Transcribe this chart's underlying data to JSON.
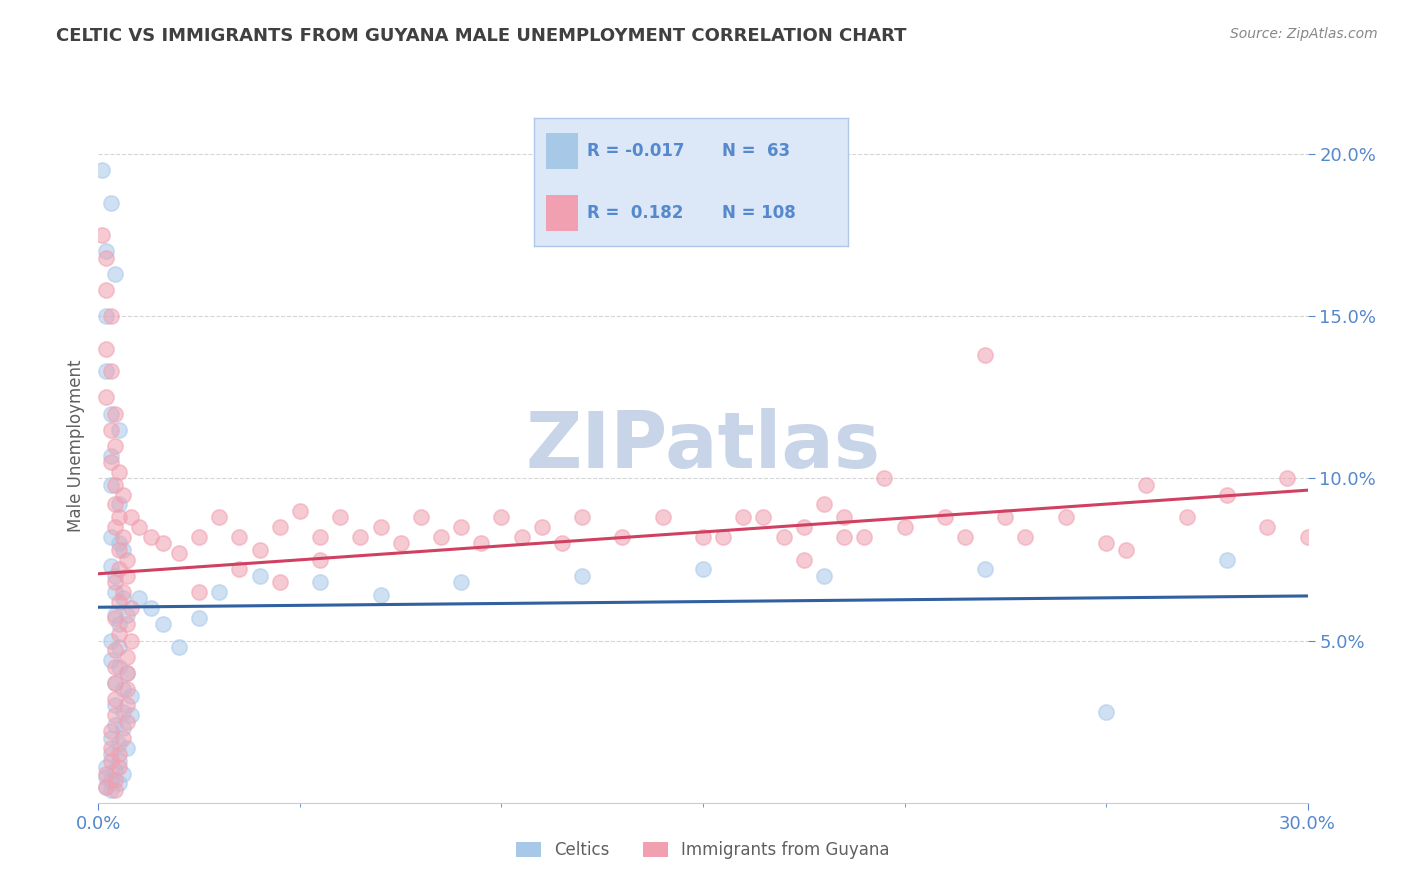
{
  "title": "CELTIC VS IMMIGRANTS FROM GUYANA MALE UNEMPLOYMENT CORRELATION CHART",
  "source": "Source: ZipAtlas.com",
  "ylabel": "Male Unemployment",
  "xlim": [
    0.0,
    0.3
  ],
  "ylim": [
    0.0,
    0.22
  ],
  "xticks_major": [
    0.0,
    0.3
  ],
  "xtick_labels_major": [
    "0.0%",
    "30.0%"
  ],
  "xticks_minor": [
    0.05,
    0.1,
    0.15,
    0.2,
    0.25
  ],
  "yticks": [
    0.05,
    0.1,
    0.15,
    0.2
  ],
  "ytick_labels": [
    "5.0%",
    "10.0%",
    "15.0%",
    "20.0%"
  ],
  "celtics_color": "#a8c8e8",
  "guyana_color": "#f0a0b0",
  "celtics_line_color": "#3060a0",
  "guyana_line_color": "#d04060",
  "legend_bg_color": "#dce8f8",
  "legend_border_color": "#b0c8e8",
  "R_celtics": -0.017,
  "N_celtics": 63,
  "R_guyana": 0.182,
  "N_guyana": 108,
  "title_color": "#404040",
  "tick_color": "#5588cc",
  "source_color": "#888888",
  "watermark": "ZIPatlas",
  "watermark_color": "#c8d4e8",
  "grid_color": "#cccccc",
  "celtics_points": [
    [
      0.001,
      0.195
    ],
    [
      0.003,
      0.185
    ],
    [
      0.002,
      0.17
    ],
    [
      0.004,
      0.163
    ],
    [
      0.002,
      0.15
    ],
    [
      0.002,
      0.133
    ],
    [
      0.003,
      0.12
    ],
    [
      0.005,
      0.115
    ],
    [
      0.003,
      0.107
    ],
    [
      0.003,
      0.098
    ],
    [
      0.005,
      0.092
    ],
    [
      0.003,
      0.082
    ],
    [
      0.005,
      0.08
    ],
    [
      0.006,
      0.078
    ],
    [
      0.003,
      0.073
    ],
    [
      0.004,
      0.07
    ],
    [
      0.004,
      0.065
    ],
    [
      0.006,
      0.063
    ],
    [
      0.004,
      0.058
    ],
    [
      0.005,
      0.055
    ],
    [
      0.003,
      0.05
    ],
    [
      0.005,
      0.048
    ],
    [
      0.003,
      0.044
    ],
    [
      0.005,
      0.042
    ],
    [
      0.007,
      0.04
    ],
    [
      0.004,
      0.037
    ],
    [
      0.006,
      0.035
    ],
    [
      0.008,
      0.033
    ],
    [
      0.004,
      0.03
    ],
    [
      0.006,
      0.028
    ],
    [
      0.008,
      0.027
    ],
    [
      0.004,
      0.024
    ],
    [
      0.006,
      0.023
    ],
    [
      0.003,
      0.02
    ],
    [
      0.005,
      0.018
    ],
    [
      0.007,
      0.017
    ],
    [
      0.003,
      0.015
    ],
    [
      0.005,
      0.013
    ],
    [
      0.002,
      0.011
    ],
    [
      0.004,
      0.01
    ],
    [
      0.006,
      0.009
    ],
    [
      0.002,
      0.008
    ],
    [
      0.003,
      0.007
    ],
    [
      0.005,
      0.006
    ],
    [
      0.002,
      0.005
    ],
    [
      0.003,
      0.004
    ],
    [
      0.007,
      0.058
    ],
    [
      0.01,
      0.063
    ],
    [
      0.013,
      0.06
    ],
    [
      0.016,
      0.055
    ],
    [
      0.02,
      0.048
    ],
    [
      0.025,
      0.057
    ],
    [
      0.03,
      0.065
    ],
    [
      0.04,
      0.07
    ],
    [
      0.055,
      0.068
    ],
    [
      0.07,
      0.064
    ],
    [
      0.09,
      0.068
    ],
    [
      0.12,
      0.07
    ],
    [
      0.15,
      0.072
    ],
    [
      0.18,
      0.07
    ],
    [
      0.22,
      0.072
    ],
    [
      0.25,
      0.028
    ],
    [
      0.28,
      0.075
    ]
  ],
  "guyana_points": [
    [
      0.001,
      0.175
    ],
    [
      0.002,
      0.168
    ],
    [
      0.002,
      0.158
    ],
    [
      0.003,
      0.15
    ],
    [
      0.002,
      0.14
    ],
    [
      0.003,
      0.133
    ],
    [
      0.002,
      0.125
    ],
    [
      0.004,
      0.12
    ],
    [
      0.003,
      0.115
    ],
    [
      0.004,
      0.11
    ],
    [
      0.003,
      0.105
    ],
    [
      0.005,
      0.102
    ],
    [
      0.004,
      0.098
    ],
    [
      0.006,
      0.095
    ],
    [
      0.004,
      0.092
    ],
    [
      0.005,
      0.088
    ],
    [
      0.004,
      0.085
    ],
    [
      0.006,
      0.082
    ],
    [
      0.005,
      0.078
    ],
    [
      0.007,
      0.075
    ],
    [
      0.005,
      0.072
    ],
    [
      0.007,
      0.07
    ],
    [
      0.004,
      0.068
    ],
    [
      0.006,
      0.065
    ],
    [
      0.005,
      0.062
    ],
    [
      0.008,
      0.06
    ],
    [
      0.004,
      0.057
    ],
    [
      0.007,
      0.055
    ],
    [
      0.005,
      0.052
    ],
    [
      0.008,
      0.05
    ],
    [
      0.004,
      0.047
    ],
    [
      0.007,
      0.045
    ],
    [
      0.004,
      0.042
    ],
    [
      0.007,
      0.04
    ],
    [
      0.004,
      0.037
    ],
    [
      0.007,
      0.035
    ],
    [
      0.004,
      0.032
    ],
    [
      0.007,
      0.03
    ],
    [
      0.004,
      0.027
    ],
    [
      0.007,
      0.025
    ],
    [
      0.003,
      0.022
    ],
    [
      0.006,
      0.02
    ],
    [
      0.003,
      0.017
    ],
    [
      0.005,
      0.015
    ],
    [
      0.003,
      0.013
    ],
    [
      0.005,
      0.011
    ],
    [
      0.002,
      0.009
    ],
    [
      0.004,
      0.007
    ],
    [
      0.002,
      0.005
    ],
    [
      0.004,
      0.004
    ],
    [
      0.008,
      0.088
    ],
    [
      0.01,
      0.085
    ],
    [
      0.013,
      0.082
    ],
    [
      0.016,
      0.08
    ],
    [
      0.02,
      0.077
    ],
    [
      0.025,
      0.082
    ],
    [
      0.03,
      0.088
    ],
    [
      0.035,
      0.082
    ],
    [
      0.04,
      0.078
    ],
    [
      0.045,
      0.085
    ],
    [
      0.05,
      0.09
    ],
    [
      0.055,
      0.082
    ],
    [
      0.06,
      0.088
    ],
    [
      0.065,
      0.082
    ],
    [
      0.07,
      0.085
    ],
    [
      0.075,
      0.08
    ],
    [
      0.08,
      0.088
    ],
    [
      0.085,
      0.082
    ],
    [
      0.09,
      0.085
    ],
    [
      0.095,
      0.08
    ],
    [
      0.1,
      0.088
    ],
    [
      0.105,
      0.082
    ],
    [
      0.11,
      0.085
    ],
    [
      0.115,
      0.08
    ],
    [
      0.12,
      0.088
    ],
    [
      0.13,
      0.082
    ],
    [
      0.14,
      0.088
    ],
    [
      0.15,
      0.082
    ],
    [
      0.16,
      0.088
    ],
    [
      0.17,
      0.082
    ],
    [
      0.175,
      0.085
    ],
    [
      0.18,
      0.092
    ],
    [
      0.185,
      0.088
    ],
    [
      0.19,
      0.082
    ],
    [
      0.195,
      0.1
    ],
    [
      0.2,
      0.085
    ],
    [
      0.21,
      0.088
    ],
    [
      0.215,
      0.082
    ],
    [
      0.22,
      0.138
    ],
    [
      0.225,
      0.088
    ],
    [
      0.23,
      0.082
    ],
    [
      0.24,
      0.088
    ],
    [
      0.25,
      0.08
    ],
    [
      0.255,
      0.078
    ],
    [
      0.26,
      0.098
    ],
    [
      0.27,
      0.088
    ],
    [
      0.28,
      0.095
    ],
    [
      0.29,
      0.085
    ],
    [
      0.295,
      0.1
    ],
    [
      0.3,
      0.082
    ],
    [
      0.155,
      0.082
    ],
    [
      0.165,
      0.088
    ],
    [
      0.175,
      0.075
    ],
    [
      0.185,
      0.082
    ],
    [
      0.025,
      0.065
    ],
    [
      0.035,
      0.072
    ],
    [
      0.045,
      0.068
    ],
    [
      0.055,
      0.075
    ]
  ]
}
